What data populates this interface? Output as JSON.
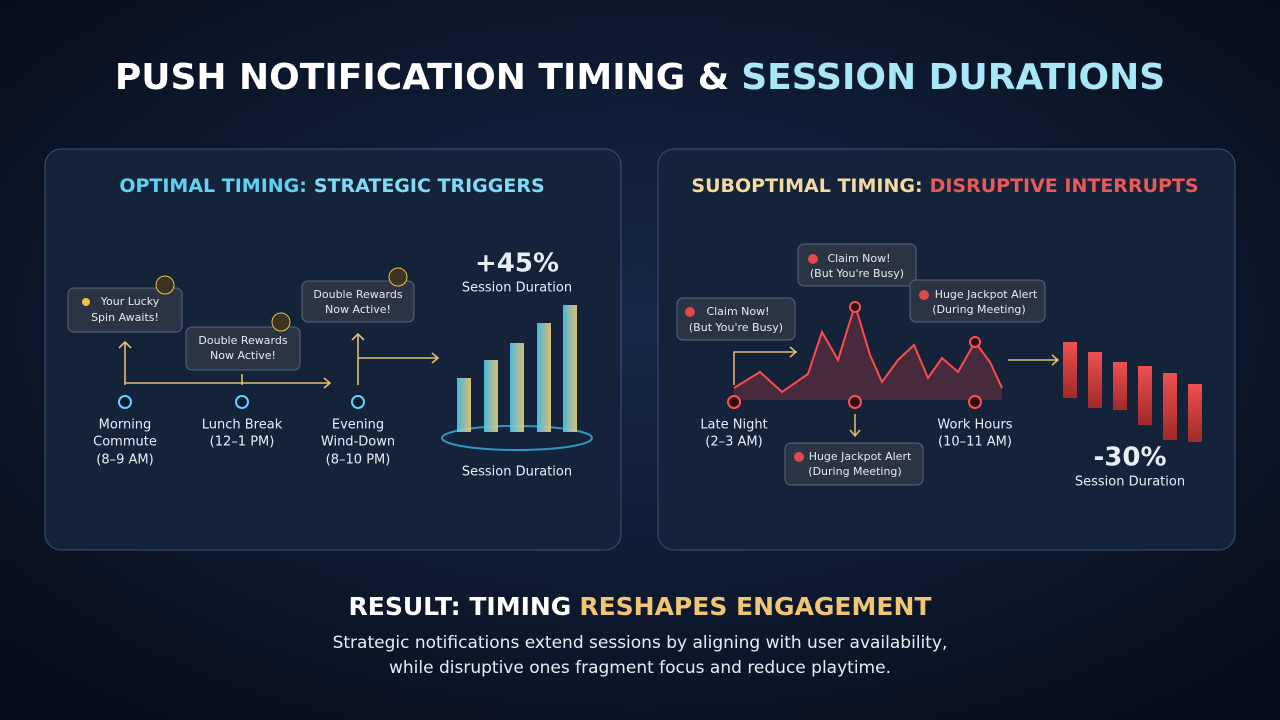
{
  "header": {
    "title_parts": [
      "PUSH NOTIFICATION TIMING &",
      "SESSION DURATIONS"
    ]
  },
  "panels": [
    {
      "title_parts": [
        "OPTIMAL TIMING:",
        "STRATEGIC TRIGGERS"
      ],
      "timeline": [
        [
          "Morning",
          "Commute",
          "(8–9 AM)"
        ],
        [
          "Lunch Break",
          "(12–1 PM)"
        ],
        [
          "Evening",
          "Wind-Down",
          "(8–10 PM)"
        ]
      ],
      "notifications": [
        [
          "Your Lucky",
          "Spin Awaits!"
        ],
        [
          "Double Rewards",
          "Now Active!"
        ],
        [
          "Double Rewards",
          "Now Active!"
        ]
      ],
      "change": "+45%",
      "change_label": "Session Duration",
      "bars_label": "Session Duration"
    },
    {
      "title_parts": [
        "SUBOPTIMAL TIMING:",
        "DISRUPTIVE INTERRUPTS"
      ],
      "timeline": [
        [
          "Late Night",
          "(2–3 AM)"
        ],
        [
          "Work Hours",
          "(10–11 AM)"
        ]
      ],
      "notifications": [
        [
          "Claim Now!",
          "(But You're Busy)"
        ],
        [
          "Claim Now!",
          "(But You're Busy)"
        ],
        [
          "Huge Jackpot Alert",
          "(During Meeting)"
        ],
        [
          "Huge Jackpot Alert",
          "(During Meeting)"
        ]
      ],
      "change": "-30%",
      "change_label": "Session Duration"
    }
  ],
  "result": {
    "title_parts": [
      "RESULT: TIMING",
      "RESHAPES ENGAGEMENT"
    ],
    "lines": [
      "Strategic notifications extend sessions by aligning with user availability,",
      "while disruptive ones fragment focus and reduce playtime."
    ]
  }
}
